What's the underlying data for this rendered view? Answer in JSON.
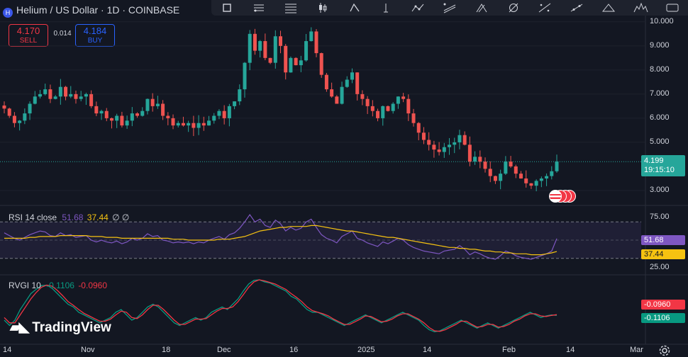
{
  "header": {
    "symbol_logo_letter": "H",
    "title": "Helium / US Dollar · 1D · COINBASE"
  },
  "toolbar": {
    "icons": [
      "zoom-icon",
      "trendline-icon",
      "fib-retracement-icon",
      "long-position-icon",
      "brush-icon",
      "vertical-line-icon",
      "path-icon",
      "parallel-channel-icon",
      "pitchfork-icon",
      "reset-icon",
      "ray-icon",
      "extended-line-icon",
      "triangle-pattern-icon",
      "head-shoulders-icon",
      "more-tools-icon"
    ]
  },
  "trading": {
    "sell_price": "4.170",
    "sell_label": "SELL",
    "spread": "0.014",
    "buy_price": "4.184",
    "buy_label": "BUY"
  },
  "price_axis": {
    "ticks": [
      "10.000",
      "9.000",
      "8.000",
      "7.000",
      "6.000",
      "5.000",
      "3.000"
    ],
    "current_price": "4.199",
    "countdown": "19:15:10"
  },
  "rsi": {
    "name": "RSI 14 close",
    "value": "51.68",
    "ma_value": "37.44",
    "extra": "∅ ∅",
    "axis_ticks": [
      "75.00",
      "25.00"
    ]
  },
  "rvgi": {
    "name": "RVGI 10",
    "value_green": "-0.1106",
    "value_red": "-0.0960"
  },
  "time_axis": {
    "labels": [
      "14",
      "Nov",
      "18",
      "Dec",
      "16",
      "2025",
      "14",
      "Feb",
      "14",
      "Mar"
    ]
  },
  "brand": {
    "name": "TradingView"
  },
  "colors": {
    "up": "#26a69a",
    "down": "#ef5350",
    "rsi_line": "#7e57c2",
    "rsi_ma": "#f5c211",
    "rvgi_green": "#089981",
    "rvgi_red": "#f23645",
    "buy": "#2962ff",
    "sell": "#f23645"
  },
  "chart_data": [
    {
      "type": "candlestick",
      "title": "Helium / US Dollar · 1D · COINBASE",
      "ylim": [
        2.5,
        10.2
      ],
      "closes": [
        6.4,
        6.1,
        5.8,
        5.9,
        6.2,
        6.6,
        6.9,
        7.0,
        7.2,
        6.8,
        6.9,
        7.3,
        6.9,
        7.0,
        6.8,
        6.9,
        7.0,
        6.5,
        6.2,
        6.3,
        6.0,
        5.9,
        6.1,
        5.7,
        5.9,
        6.2,
        6.1,
        6.3,
        6.8,
        6.5,
        6.6,
        6.1,
        6.0,
        5.7,
        5.8,
        5.7,
        5.8,
        5.6,
        5.8,
        5.7,
        5.9,
        6.1,
        6.3,
        6.0,
        6.5,
        6.7,
        7.2,
        8.3,
        9.5,
        8.8,
        9.2,
        8.5,
        8.3,
        9.4,
        9.0,
        7.9,
        8.5,
        8.2,
        8.4,
        9.2,
        9.6,
        8.7,
        7.8,
        7.2,
        6.9,
        6.6,
        7.3,
        7.6,
        7.9,
        7.0,
        6.8,
        6.5,
        6.3,
        6.0,
        6.5,
        6.3,
        6.6,
        6.9,
        6.8,
        6.2,
        5.8,
        5.4,
        5.1,
        4.9,
        4.7,
        4.6,
        4.8,
        4.9,
        5.0,
        5.3,
        4.9,
        4.2,
        4.4,
        4.2,
        3.9,
        3.6,
        3.4,
        3.7,
        4.2,
        4.0,
        3.7,
        3.5,
        3.3,
        3.2,
        3.4,
        3.5,
        3.6,
        3.8,
        4.2
      ],
      "last_price": 4.199
    },
    {
      "type": "line",
      "name": "RSI 14 close",
      "ylim": [
        15,
        85
      ],
      "series": [
        {
          "name": "RSI",
          "values": [
            58,
            55,
            52,
            50,
            53,
            56,
            58,
            60,
            59,
            55,
            54,
            58,
            55,
            56,
            53,
            54,
            55,
            50,
            48,
            50,
            48,
            47,
            49,
            46,
            48,
            52,
            50,
            52,
            57,
            54,
            55,
            50,
            49,
            47,
            48,
            47,
            48,
            46,
            48,
            47,
            50,
            52,
            54,
            51,
            56,
            58,
            63,
            70,
            78,
            70,
            73,
            66,
            64,
            72,
            68,
            60,
            64,
            61,
            63,
            70,
            73,
            64,
            56,
            52,
            50,
            47,
            54,
            57,
            60,
            52,
            50,
            47,
            45,
            43,
            48,
            46,
            49,
            52,
            50,
            45,
            42,
            40,
            38,
            37,
            36,
            35,
            38,
            39,
            40,
            44,
            40,
            34,
            37,
            35,
            32,
            30,
            29,
            33,
            38,
            36,
            33,
            31,
            30,
            29,
            31,
            33,
            35,
            38,
            51.68
          ]
        },
        {
          "name": "MA",
          "values": [
            52,
            52,
            52,
            52,
            52,
            53,
            53,
            54,
            54,
            54,
            54,
            55,
            55,
            55,
            55,
            55,
            55,
            54,
            54,
            54,
            53,
            53,
            53,
            52,
            52,
            52,
            52,
            52,
            52,
            52,
            52,
            52,
            52,
            51,
            51,
            51,
            50,
            50,
            50,
            50,
            50,
            50,
            51,
            51,
            51,
            52,
            53,
            54,
            56,
            58,
            60,
            61,
            62,
            63,
            64,
            64,
            65,
            65,
            65,
            65,
            66,
            66,
            65,
            64,
            63,
            62,
            61,
            60,
            60,
            59,
            58,
            57,
            56,
            55,
            54,
            53,
            53,
            52,
            51,
            50,
            49,
            48,
            47,
            46,
            45,
            44,
            43,
            42,
            42,
            41,
            41,
            40,
            40,
            39,
            38,
            38,
            37,
            37,
            36,
            36,
            35,
            35,
            35,
            34,
            34,
            34,
            35,
            36,
            37.44
          ]
        }
      ]
    },
    {
      "type": "line",
      "name": "RVGI 10",
      "ylim": [
        -0.6,
        0.6
      ],
      "series": [
        {
          "name": "RVGI",
          "values": [
            -0.2,
            -0.3,
            -0.2,
            0.0,
            0.15,
            0.3,
            0.38,
            0.45,
            0.46,
            0.4,
            0.3,
            0.2,
            0.1,
            0.05,
            -0.05,
            -0.1,
            -0.15,
            -0.2,
            -0.25,
            -0.2,
            -0.15,
            -0.05,
            0.0,
            -0.1,
            -0.2,
            -0.15,
            -0.05,
            0.05,
            0.1,
            0.05,
            -0.05,
            -0.15,
            -0.25,
            -0.3,
            -0.25,
            -0.2,
            -0.15,
            -0.2,
            -0.15,
            -0.05,
            0.0,
            0.05,
            0.0,
            0.1,
            0.2,
            0.35,
            0.48,
            0.55,
            0.56,
            0.52,
            0.5,
            0.45,
            0.4,
            0.35,
            0.25,
            0.2,
            0.1,
            0.0,
            -0.05,
            -0.05,
            -0.1,
            -0.15,
            -0.2,
            -0.25,
            -0.3,
            -0.25,
            -0.2,
            -0.15,
            -0.1,
            -0.15,
            -0.2,
            -0.25,
            -0.2,
            -0.15,
            -0.1,
            -0.05,
            -0.1,
            -0.15,
            -0.2,
            -0.3,
            -0.38,
            -0.42,
            -0.4,
            -0.35,
            -0.3,
            -0.25,
            -0.2,
            -0.25,
            -0.3,
            -0.35,
            -0.3,
            -0.25,
            -0.3,
            -0.35,
            -0.3,
            -0.25,
            -0.2,
            -0.15,
            -0.1,
            -0.05,
            -0.1,
            -0.15,
            -0.12,
            -0.1,
            -0.11
          ]
        },
        {
          "name": "Signal",
          "values": [
            -0.15,
            -0.25,
            -0.25,
            -0.1,
            0.05,
            0.2,
            0.32,
            0.42,
            0.46,
            0.44,
            0.36,
            0.26,
            0.15,
            0.08,
            0.0,
            -0.07,
            -0.12,
            -0.17,
            -0.22,
            -0.22,
            -0.18,
            -0.1,
            -0.03,
            -0.05,
            -0.15,
            -0.17,
            -0.1,
            0.0,
            0.08,
            0.08,
            0.0,
            -0.1,
            -0.2,
            -0.28,
            -0.28,
            -0.23,
            -0.18,
            -0.18,
            -0.17,
            -0.1,
            -0.03,
            0.02,
            0.02,
            0.05,
            0.15,
            0.28,
            0.42,
            0.52,
            0.56,
            0.54,
            0.51,
            0.48,
            0.43,
            0.38,
            0.3,
            0.23,
            0.15,
            0.05,
            -0.02,
            -0.05,
            -0.08,
            -0.12,
            -0.18,
            -0.23,
            -0.28,
            -0.28,
            -0.23,
            -0.18,
            -0.12,
            -0.13,
            -0.18,
            -0.23,
            -0.22,
            -0.18,
            -0.12,
            -0.08,
            -0.08,
            -0.13,
            -0.18,
            -0.25,
            -0.34,
            -0.4,
            -0.41,
            -0.38,
            -0.33,
            -0.28,
            -0.22,
            -0.22,
            -0.28,
            -0.33,
            -0.32,
            -0.28,
            -0.28,
            -0.33,
            -0.32,
            -0.28,
            -0.22,
            -0.18,
            -0.12,
            -0.08,
            -0.08,
            -0.12,
            -0.13,
            -0.11,
            -0.096
          ]
        }
      ]
    }
  ]
}
